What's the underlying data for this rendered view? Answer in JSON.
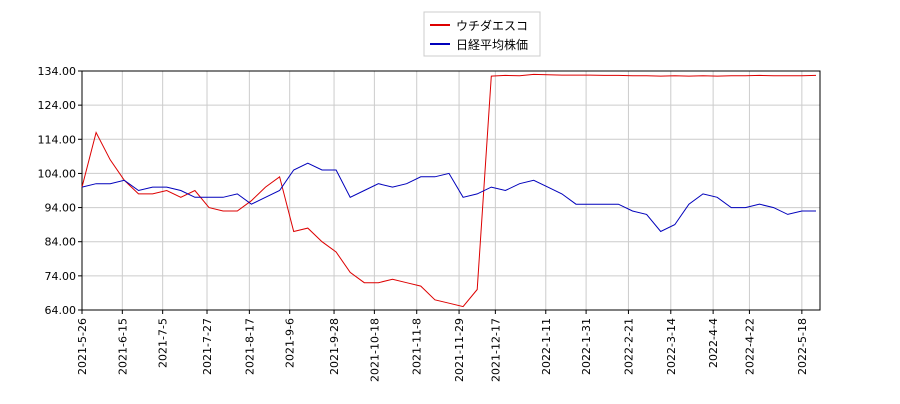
{
  "chart_data": {
    "type": "line",
    "x": [
      "2021-5-26",
      "2021-6-2",
      "2021-6-9",
      "2021-6-16",
      "2021-6-23",
      "2021-6-30",
      "2021-7-7",
      "2021-7-14",
      "2021-7-21",
      "2021-7-28",
      "2021-8-4",
      "2021-8-11",
      "2021-8-18",
      "2021-8-25",
      "2021-9-1",
      "2021-9-8",
      "2021-9-15",
      "2021-9-22",
      "2021-9-29",
      "2021-10-6",
      "2021-10-13",
      "2021-10-20",
      "2021-10-27",
      "2021-11-3",
      "2021-11-10",
      "2021-11-17",
      "2021-11-24",
      "2021-12-1",
      "2021-12-8",
      "2021-12-15",
      "2021-12-22",
      "2021-12-29",
      "2022-1-5",
      "2022-1-12",
      "2022-1-19",
      "2022-1-26",
      "2022-2-2",
      "2022-2-9",
      "2022-2-16",
      "2022-2-23",
      "2022-3-2",
      "2022-3-9",
      "2022-3-16",
      "2022-3-23",
      "2022-3-30",
      "2022-4-6",
      "2022-4-13",
      "2022-4-20",
      "2022-4-27",
      "2022-5-4",
      "2022-5-11",
      "2022-5-18",
      "2022-5-25"
    ],
    "series": [
      {
        "name": "ウチダエスコ",
        "color": "#dd0000",
        "values": [
          100,
          116,
          108,
          102,
          98,
          98,
          99,
          97,
          99,
          94,
          93,
          93,
          96,
          100,
          103,
          87,
          88,
          84,
          81,
          75,
          72,
          72,
          73,
          72,
          71,
          67,
          66,
          65,
          70,
          132.5,
          132.7,
          132.6,
          133,
          132.9,
          132.8,
          132.8,
          132.8,
          132.7,
          132.7,
          132.6,
          132.6,
          132.5,
          132.6,
          132.5,
          132.6,
          132.5,
          132.6,
          132.6,
          132.7,
          132.6,
          132.6,
          132.6,
          132.7
        ]
      },
      {
        "name": "日経平均株価",
        "color": "#0000bb",
        "values": [
          100,
          101,
          101,
          102,
          99,
          100,
          100,
          99,
          97,
          97,
          97,
          98,
          95,
          97,
          99,
          105,
          107,
          105,
          105,
          97,
          99,
          101,
          100,
          101,
          103,
          103,
          104,
          97,
          98,
          100,
          99,
          101,
          102,
          100,
          98,
          95,
          95,
          95,
          95,
          93,
          92,
          87,
          89,
          95,
          98,
          97,
          94,
          94,
          95,
          94,
          92,
          93,
          93
        ]
      }
    ],
    "xlim": [
      "2021-5-26",
      "2022-5-27"
    ],
    "xticks": [
      "2021-5-26",
      "2021-6-15",
      "2021-7-5",
      "2021-7-27",
      "2021-8-17",
      "2021-9-6",
      "2021-9-28",
      "2021-10-18",
      "2021-11-8",
      "2021-11-29",
      "2021-12-17",
      "2022-1-11",
      "2022-1-31",
      "2022-2-21",
      "2022-3-14",
      "2022-4-4",
      "2022-4-22",
      "2022-5-18"
    ],
    "ylim": [
      64,
      134
    ],
    "yticks": [
      {
        "value": 64,
        "label": "64.00"
      },
      {
        "value": 74,
        "label": "74.00"
      },
      {
        "value": 84,
        "label": "84.00"
      },
      {
        "value": 94,
        "label": "94.00"
      },
      {
        "value": 104,
        "label": "104.00"
      },
      {
        "value": 114,
        "label": "114.00"
      },
      {
        "value": 124,
        "label": "124.00"
      },
      {
        "value": 134,
        "label": "134.00"
      }
    ],
    "grid": true,
    "legend": "top"
  }
}
